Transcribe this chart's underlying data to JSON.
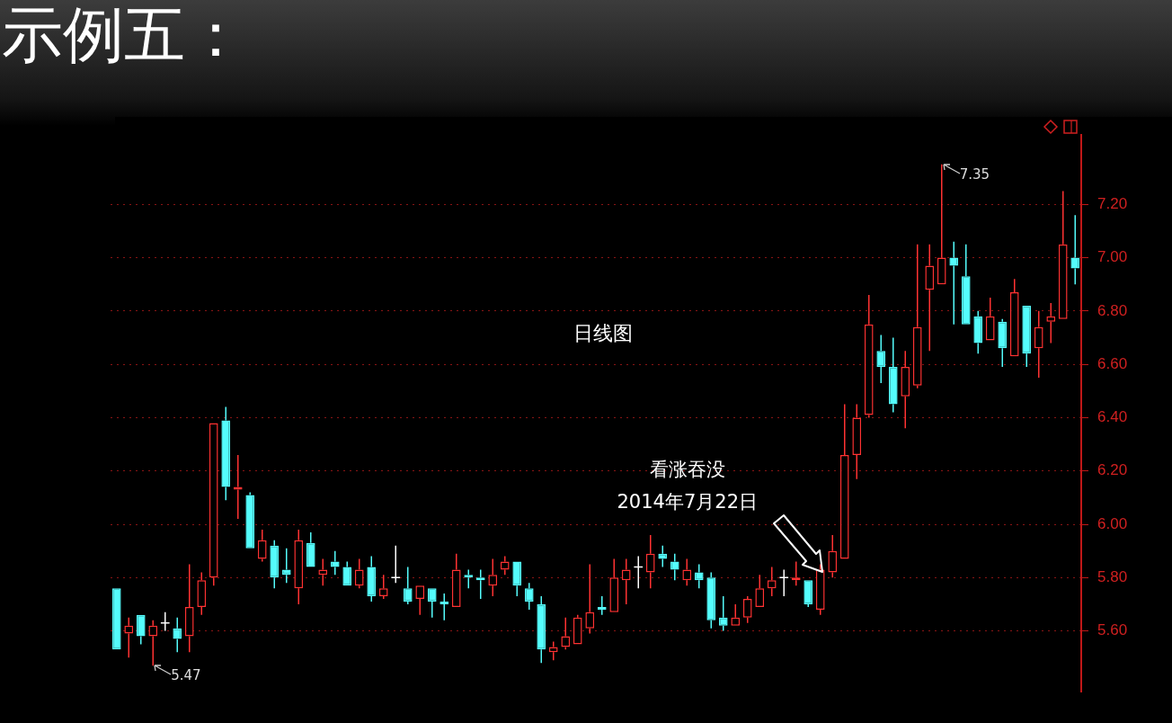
{
  "chart_data": {
    "type": "candlestick",
    "title": "示例五：",
    "subtitle": "日线图",
    "categories": [
      null,
      null,
      null,
      null,
      null,
      null,
      null,
      null,
      null,
      null,
      null,
      null,
      null,
      null,
      null,
      null,
      null,
      null,
      null,
      null,
      null,
      null,
      null,
      null,
      null,
      null,
      null,
      null,
      null,
      null,
      null,
      null,
      null,
      null,
      null,
      null,
      null,
      null,
      null,
      null,
      null,
      null,
      null,
      null,
      null,
      null,
      null,
      null,
      null,
      null,
      null,
      null,
      null,
      null,
      null,
      null,
      null,
      null,
      null,
      null,
      null,
      null,
      null,
      null,
      null,
      null,
      null,
      null,
      null,
      null,
      null,
      null,
      null,
      null,
      null,
      null,
      null,
      null,
      null,
      null
    ],
    "ohlc": [
      [
        5.76,
        5.76,
        5.53,
        5.53
      ],
      [
        5.59,
        5.65,
        5.5,
        5.62
      ],
      [
        5.66,
        5.66,
        5.55,
        5.58
      ],
      [
        5.58,
        5.64,
        5.47,
        5.62
      ],
      [
        5.63,
        5.67,
        5.6,
        5.63
      ],
      [
        5.61,
        5.65,
        5.52,
        5.57
      ],
      [
        5.58,
        5.85,
        5.52,
        5.69
      ],
      [
        5.69,
        5.82,
        5.66,
        5.79
      ],
      [
        5.8,
        6.38,
        5.77,
        6.38
      ],
      [
        6.39,
        6.44,
        6.09,
        6.14
      ],
      [
        6.13,
        6.26,
        6.02,
        6.14
      ],
      [
        6.11,
        6.12,
        5.91,
        5.91
      ],
      [
        5.87,
        5.98,
        5.86,
        5.94
      ],
      [
        5.92,
        5.94,
        5.76,
        5.8
      ],
      [
        5.83,
        5.91,
        5.78,
        5.81
      ],
      [
        5.76,
        5.98,
        5.7,
        5.94
      ],
      [
        5.93,
        5.97,
        5.84,
        5.84
      ],
      [
        5.81,
        5.87,
        5.77,
        5.83
      ],
      [
        5.86,
        5.9,
        5.81,
        5.84
      ],
      [
        5.84,
        5.86,
        5.77,
        5.77
      ],
      [
        5.77,
        5.87,
        5.76,
        5.83
      ],
      [
        5.84,
        5.88,
        5.71,
        5.73
      ],
      [
        5.73,
        5.81,
        5.72,
        5.76
      ],
      [
        5.8,
        5.92,
        5.78,
        5.8
      ],
      [
        5.76,
        5.84,
        5.7,
        5.71
      ],
      [
        5.72,
        5.77,
        5.66,
        5.77
      ],
      [
        5.76,
        5.76,
        5.65,
        5.71
      ],
      [
        5.71,
        5.74,
        5.64,
        5.7
      ],
      [
        5.69,
        5.89,
        5.69,
        5.83
      ],
      [
        5.81,
        5.83,
        5.76,
        5.8
      ],
      [
        5.8,
        5.83,
        5.72,
        5.79
      ],
      [
        5.77,
        5.87,
        5.73,
        5.81
      ],
      [
        5.83,
        5.88,
        5.81,
        5.86
      ],
      [
        5.86,
        5.86,
        5.73,
        5.77
      ],
      [
        5.76,
        5.78,
        5.68,
        5.71
      ],
      [
        5.7,
        5.73,
        5.48,
        5.53
      ],
      [
        5.52,
        5.56,
        5.49,
        5.54
      ],
      [
        5.54,
        5.65,
        5.53,
        5.58
      ],
      [
        5.55,
        5.66,
        5.55,
        5.65
      ],
      [
        5.61,
        5.85,
        5.59,
        5.67
      ],
      [
        5.69,
        5.73,
        5.66,
        5.68
      ],
      [
        5.67,
        5.87,
        5.67,
        5.8
      ],
      [
        5.79,
        5.87,
        5.7,
        5.83
      ],
      [
        5.84,
        5.88,
        5.76,
        5.84
      ],
      [
        5.82,
        5.96,
        5.76,
        5.89
      ],
      [
        5.89,
        5.92,
        5.84,
        5.87
      ],
      [
        5.86,
        5.89,
        5.79,
        5.83
      ],
      [
        5.79,
        5.87,
        5.77,
        5.83
      ],
      [
        5.82,
        5.85,
        5.76,
        5.79
      ],
      [
        5.8,
        5.82,
        5.61,
        5.64
      ],
      [
        5.65,
        5.73,
        5.6,
        5.62
      ],
      [
        5.62,
        5.7,
        5.62,
        5.65
      ],
      [
        5.65,
        5.73,
        5.63,
        5.72
      ],
      [
        5.69,
        5.81,
        5.69,
        5.76
      ],
      [
        5.76,
        5.84,
        5.73,
        5.79
      ],
      [
        5.8,
        5.83,
        5.73,
        5.8
      ],
      [
        5.79,
        5.86,
        5.77,
        5.8
      ],
      [
        5.79,
        5.79,
        5.69,
        5.7
      ],
      [
        5.68,
        5.85,
        5.66,
        5.83
      ],
      [
        5.82,
        5.96,
        5.8,
        5.9
      ],
      [
        5.87,
        6.45,
        5.87,
        6.26
      ],
      [
        6.26,
        6.45,
        6.17,
        6.4
      ],
      [
        6.41,
        6.86,
        6.4,
        6.75
      ],
      [
        6.65,
        6.71,
        6.53,
        6.59
      ],
      [
        6.59,
        6.7,
        6.42,
        6.45
      ],
      [
        6.48,
        6.65,
        6.36,
        6.59
      ],
      [
        6.52,
        7.05,
        6.51,
        6.74
      ],
      [
        6.88,
        7.05,
        6.65,
        6.97
      ],
      [
        6.9,
        7.35,
        6.9,
        7.0
      ],
      [
        7.0,
        7.06,
        6.75,
        6.97
      ],
      [
        6.93,
        7.05,
        6.75,
        6.75
      ],
      [
        6.78,
        6.8,
        6.64,
        6.68
      ],
      [
        6.69,
        6.85,
        6.69,
        6.78
      ],
      [
        6.76,
        6.77,
        6.59,
        6.66
      ],
      [
        6.63,
        6.92,
        6.63,
        6.87
      ],
      [
        6.82,
        6.82,
        6.59,
        6.64
      ],
      [
        6.66,
        6.8,
        6.55,
        6.74
      ],
      [
        6.76,
        6.83,
        6.68,
        6.78
      ],
      [
        6.77,
        7.25,
        6.77,
        7.05
      ],
      [
        7.0,
        7.16,
        6.9,
        6.96
      ]
    ],
    "colors": [
      "#54fcfc",
      "#ff3232",
      "#54fcfc",
      "#ff3232",
      "#ffffff",
      "#54fcfc",
      "#ff3232",
      "#ff3232",
      "#ff3232",
      "#54fcfc",
      "#ff3232",
      "#54fcfc",
      "#ff3232",
      "#54fcfc",
      "#54fcfc",
      "#ff3232",
      "#54fcfc",
      "#ff3232",
      "#54fcfc",
      "#54fcfc",
      "#ff3232",
      "#54fcfc",
      "#ff3232",
      "#ffffff",
      "#54fcfc",
      "#ff3232",
      "#54fcfc",
      "#54fcfc",
      "#ff3232",
      "#54fcfc",
      "#54fcfc",
      "#ff3232",
      "#ff3232",
      "#54fcfc",
      "#54fcfc",
      "#54fcfc",
      "#ff3232",
      "#ff3232",
      "#ff3232",
      "#ff3232",
      "#54fcfc",
      "#ff3232",
      "#ff3232",
      "#ffffff",
      "#ff3232",
      "#54fcfc",
      "#54fcfc",
      "#ff3232",
      "#54fcfc",
      "#54fcfc",
      "#54fcfc",
      "#ff3232",
      "#ff3232",
      "#ff3232",
      "#ff3232",
      "#ffffff",
      "#ff3232",
      "#54fcfc",
      "#ff3232",
      "#ff3232",
      "#ff3232",
      "#ff3232",
      "#ff3232",
      "#54fcfc",
      "#54fcfc",
      "#ff3232",
      "#ff3232",
      "#ff3232",
      "#ff3232",
      "#54fcfc",
      "#54fcfc",
      "#54fcfc",
      "#ff3232",
      "#54fcfc",
      "#ff3232",
      "#54fcfc",
      "#ff3232",
      "#ff3232",
      "#ff3232",
      "#54fcfc"
    ],
    "ylim": [
      5.37,
      7.46
    ],
    "yticks": [
      {
        "value": 5.6,
        "label": "5.60"
      },
      {
        "value": 5.8,
        "label": "5.80"
      },
      {
        "value": 6.0,
        "label": "6.00"
      },
      {
        "value": 6.2,
        "label": "6.20"
      },
      {
        "value": 6.4,
        "label": "6.40"
      },
      {
        "value": 6.6,
        "label": "6.60"
      },
      {
        "value": 6.8,
        "label": "6.80"
      },
      {
        "value": 7.0,
        "label": "7.00"
      },
      {
        "value": 7.2,
        "label": "7.20"
      }
    ],
    "grid": "y",
    "tick_labels": "y",
    "annotations": [
      "5.47",
      "7.35",
      "看涨吞没",
      "2014年7月22日"
    ]
  }
}
